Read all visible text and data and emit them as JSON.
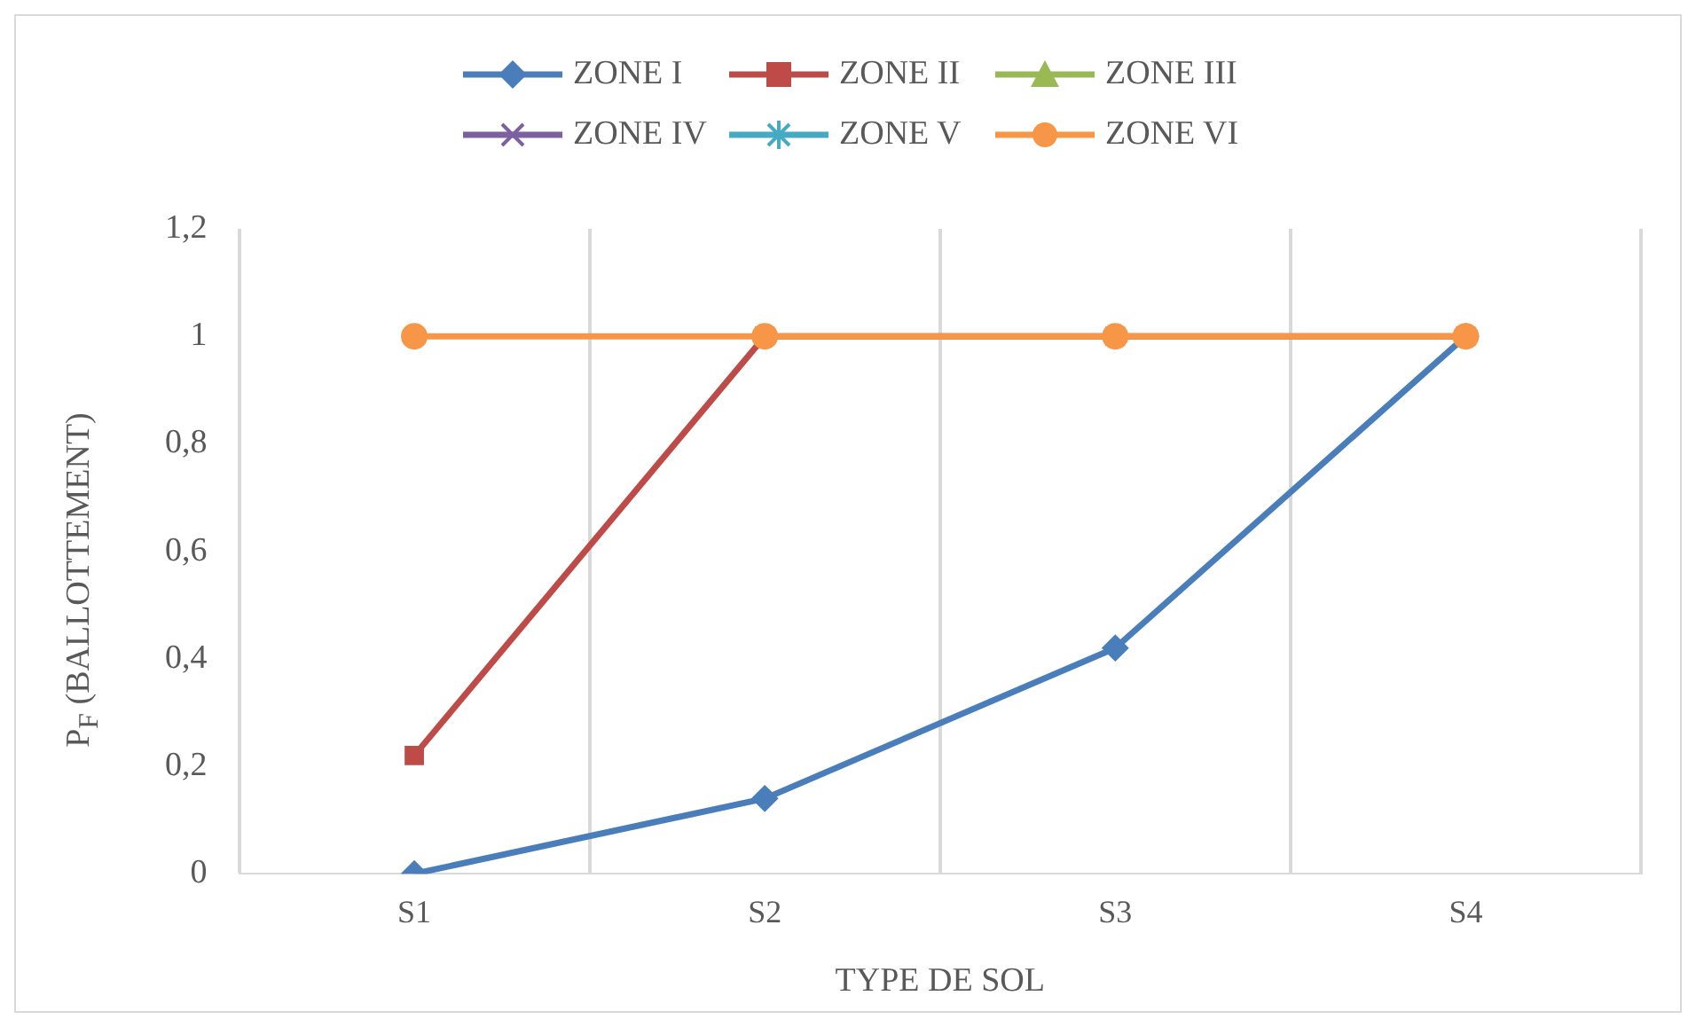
{
  "chart_data": {
    "type": "line",
    "xlabel": "TYPE DE SOL",
    "ylabel": "P$_{F}$ (BALLOTTEMENT)",
    "categories": [
      "S1",
      "S2",
      "S3",
      "S4"
    ],
    "series": [
      {
        "name": "ZONE I",
        "color": "#4a7ebb",
        "marker": "diamond",
        "values": [
          0,
          0.14,
          0.42,
          1
        ]
      },
      {
        "name": "ZONE II",
        "color": "#be4b48",
        "marker": "square",
        "values": [
          0.22,
          1,
          1,
          1
        ]
      },
      {
        "name": "ZONE III",
        "color": "#98b954",
        "marker": "triangle",
        "values": [
          null,
          null,
          null,
          null
        ]
      },
      {
        "name": "ZONE IV",
        "color": "#7d60a0",
        "marker": "cross",
        "values": [
          null,
          null,
          null,
          null
        ]
      },
      {
        "name": "ZONE V",
        "color": "#46aac5",
        "marker": "star",
        "values": [
          null,
          null,
          null,
          null
        ]
      },
      {
        "name": "ZONE VI",
        "color": "#f79646",
        "marker": "circle",
        "values": [
          1,
          1,
          1,
          1
        ]
      }
    ],
    "ylim": [
      0,
      1.2
    ],
    "yticks": [
      0,
      {
        "value": 0.2,
        "label": "0,2"
      },
      {
        "value": 0.4,
        "label": "0,4"
      },
      {
        "value": 0.6,
        "label": "0,6"
      },
      {
        "value": 0.8,
        "label": "0,8"
      },
      1,
      {
        "value": 1.2,
        "label": "1,2"
      }
    ],
    "grid": "x",
    "legend": "top",
    "line_style": "solid"
  }
}
